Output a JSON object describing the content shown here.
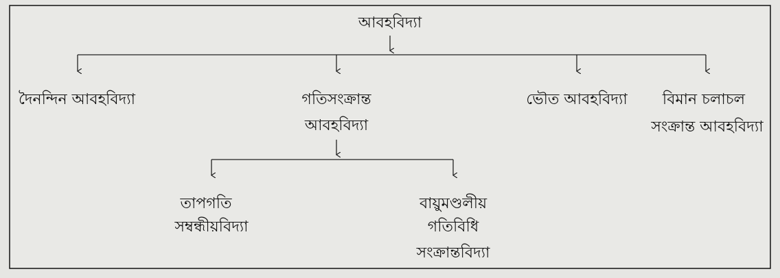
{
  "nodes": [
    {
      "lines": [
        "আবহবিদ্যা"
      ]
    },
    {
      "lines": [
        "দৈনন্দিন আবহবিদ্যা"
      ]
    },
    {
      "lines": [
        "গতিসংক্রান্ত",
        "আবহবিদ্যা"
      ]
    },
    {
      "lines": [
        "ভৌত আবহবিদ্যা"
      ]
    },
    {
      "lines": [
        "বিমান চলাচল",
        "সংক্রান্ত আবহবিদ্যা"
      ]
    },
    {
      "lines": [
        "তাপগতি",
        "সম্বন্ধীয়বিদ্যা"
      ]
    },
    {
      "lines": [
        "বায়ুমণ্ডলীয়",
        "গতিবিধি",
        "সংক্রান্তবিদ্যা"
      ]
    }
  ]
}
